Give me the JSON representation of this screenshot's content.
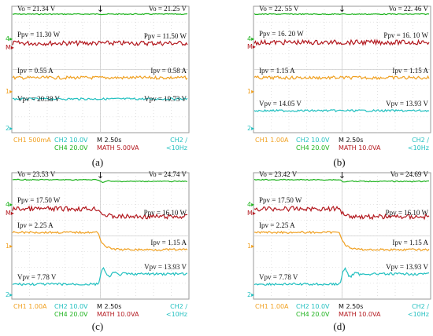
{
  "colors": {
    "vo": "#1fb31f",
    "ppv": "#b3191f",
    "ipv": "#f0a020",
    "vpv": "#22c0c0",
    "grid": "#cfcfcf",
    "border": "#9a9a9a",
    "ch1": "#f0a020",
    "ch2": "#22c0c0",
    "ch4": "#1fb31f",
    "math": "#b3191f",
    "black": "#111111"
  },
  "chart_data": [
    {
      "type": "line",
      "caption": "(a)",
      "series": [
        {
          "key": "vo",
          "name": "Vo",
          "values": [
            21.34,
            21.25
          ]
        },
        {
          "key": "ppv",
          "name": "Ppv",
          "values": [
            11.3,
            11.5
          ]
        },
        {
          "key": "ipv",
          "name": "Ipv",
          "values": [
            0.55,
            0.58
          ]
        },
        {
          "key": "vpv",
          "name": "Vpv",
          "values": [
            20.38,
            19.73
          ]
        }
      ],
      "annotations": {
        "vo_l": "Vo = 21.34 V",
        "vo_r": "Vo = 21.25 V",
        "ppv_l": "Ppv = 11.30 W",
        "ppv_r": "Ppv = 11.50 W",
        "ipv_l": "Ipv = 0.55 A",
        "ipv_r": "Ipv = 0.58 A",
        "vpv_l": "Vpv = 20.38 V",
        "vpv_r": "Vpv = 19.73 V"
      },
      "footer": {
        "ch1": "CH1  500mA",
        "ch2": "CH2  10.0V",
        "time": "M 2.50s",
        "trig": "CH2  ∕",
        "ch4": "CH4  20.0V",
        "math": "MATH 5.00VA",
        "bw": "<10Hz"
      },
      "step": false
    },
    {
      "type": "line",
      "caption": "(b)",
      "series": [
        {
          "key": "vo",
          "name": "Vo",
          "values": [
            22.55,
            22.46
          ]
        },
        {
          "key": "ppv",
          "name": "Ppv",
          "values": [
            16.2,
            16.1
          ]
        },
        {
          "key": "ipv",
          "name": "Ipv",
          "values": [
            1.15,
            1.15
          ]
        },
        {
          "key": "vpv",
          "name": "Vpv",
          "values": [
            14.05,
            13.93
          ]
        }
      ],
      "annotations": {
        "vo_l": "Vo = 22. 55 V",
        "vo_r": "Vo = 22. 46 V",
        "ppv_l": "Ppv = 16. 20 W",
        "ppv_r": "Ppv = 16. 10 W",
        "ipv_l": "Ipv = 1.15 A",
        "ipv_r": "Ipv = 1.15 A",
        "vpv_l": "Vpv = 14.05 V",
        "vpv_r": "Vpv = 13.93 V"
      },
      "footer": {
        "ch1": "CH1  1.00A",
        "ch2": "CH2  10.0V",
        "time": "M 2.50s",
        "trig": "CH2  ∕",
        "ch4": "CH4  20.0V",
        "math": "MATH 10.0VA",
        "bw": "<10Hz"
      },
      "step": false
    },
    {
      "type": "line",
      "caption": "(c)",
      "series": [
        {
          "key": "vo",
          "name": "Vo",
          "values": [
            23.53,
            24.74
          ]
        },
        {
          "key": "ppv",
          "name": "Ppv",
          "values": [
            17.5,
            16.1
          ]
        },
        {
          "key": "ipv",
          "name": "Ipv",
          "values": [
            2.25,
            1.15
          ]
        },
        {
          "key": "vpv",
          "name": "Vpv",
          "values": [
            7.78,
            13.93
          ]
        }
      ],
      "annotations": {
        "vo_l": "Vo = 23.53 V",
        "vo_r": "Vo = 24.74 V",
        "ppv_l": "Ppv = 17.50 W",
        "ppv_r": "Ppv = 16.10 W",
        "ipv_l": "Ipv = 2.25 A",
        "ipv_r": "Ipv = 1.15 A",
        "vpv_l": "Vpv = 7.78 V",
        "vpv_r": "Vpv = 13.93 V"
      },
      "footer": {
        "ch1": "CH1  1.00A",
        "ch2": "CH2  10.0V",
        "time": "M 2.50s",
        "trig": "CH2  ∕",
        "ch4": "CH4  20.0V",
        "math": "MATH 10.0VA",
        "bw": "<10Hz"
      },
      "step": true
    },
    {
      "type": "line",
      "caption": "(d)",
      "series": [
        {
          "key": "vo",
          "name": "Vo",
          "values": [
            23.42,
            24.69
          ]
        },
        {
          "key": "ppv",
          "name": "Ppv",
          "values": [
            17.5,
            16.1
          ]
        },
        {
          "key": "ipv",
          "name": "Ipv",
          "values": [
            2.25,
            1.15
          ]
        },
        {
          "key": "vpv",
          "name": "Vpv",
          "values": [
            7.78,
            13.93
          ]
        }
      ],
      "annotations": {
        "vo_l": "Vo = 23.42 V",
        "vo_r": "Vo = 24.69 V",
        "ppv_l": "Ppv = 17.50 W",
        "ppv_r": "Ppv = 16.10 W",
        "ipv_l": "Ipv = 2.25 A",
        "ipv_r": "Ipv = 1.15 A",
        "vpv_l": "Vpv = 7.78 V",
        "vpv_r": "Vpv = 13.93 V"
      },
      "footer": {
        "ch1": "CH1  1.00A",
        "ch2": "CH2  10.0V",
        "time": "M 2.50s",
        "trig": "CH2  ∕",
        "ch4": "CH4  20.0V",
        "math": "MATH 10.0VA",
        "bw": "<10Hz"
      },
      "step": true
    }
  ]
}
